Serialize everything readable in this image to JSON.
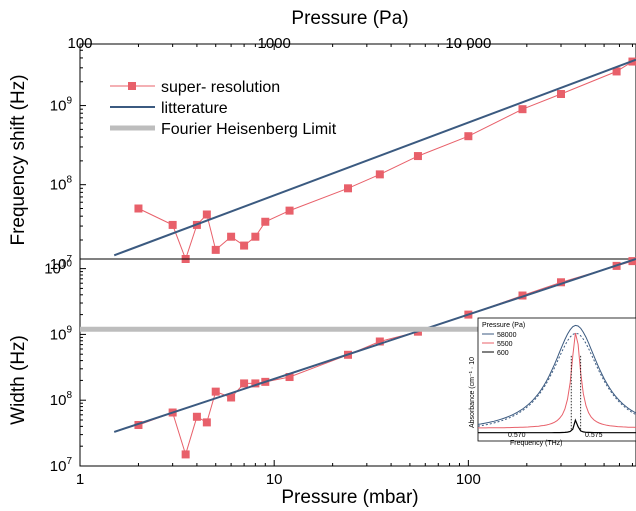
{
  "chart_data": [
    {
      "panel": "top",
      "type": "line",
      "scale": {
        "x": "log",
        "y": "log"
      },
      "xlim": [
        1,
        730
      ],
      "ylim": [
        11500000,
        6000000000
      ],
      "ylabel": "Frequency shift (Hz)",
      "top_axis": {
        "label": "Pressure (Pa)",
        "ticks": [
          {
            "value": 1.0,
            "label": "100"
          },
          {
            "value": 10,
            "label": "1000"
          },
          {
            "value": 100,
            "label": "10 000"
          }
        ]
      },
      "y_ticks": [
        {
          "value": 10000000,
          "base": "10",
          "exp": "7"
        },
        {
          "value": 100000000,
          "base": "10",
          "exp": "8"
        },
        {
          "value": 1000000000,
          "base": "10",
          "exp": "9"
        }
      ],
      "series": [
        {
          "name": "super- resolution",
          "color": "#e8606a",
          "marker": "square",
          "x": [
            2.0,
            3.0,
            3.5,
            4.0,
            4.5,
            5.0,
            6.0,
            7.0,
            8.0,
            9.0,
            12.0,
            24.0,
            35.0,
            55.0,
            100.0,
            190.0,
            300.0,
            580.0,
            700.0
          ],
          "y": [
            50000000,
            31000000,
            11500000,
            31000000,
            42000000,
            15000000,
            22000000,
            17000000,
            22000000,
            34000000,
            47000000,
            90000000,
            135000000,
            230000000,
            410000000,
            900000000,
            1400000000,
            2700000000,
            3600000000
          ]
        },
        {
          "name": "litterature",
          "color": "#3b5a80",
          "x": [
            1.5,
            730.0
          ],
          "y": [
            12800000,
            3800000000
          ]
        }
      ]
    },
    {
      "panel": "bottom",
      "type": "line",
      "scale": {
        "x": "log",
        "y": "log"
      },
      "xlim": [
        1,
        730
      ],
      "ylim": [
        10000000,
        14000000000
      ],
      "xlabel": "Pressure (mbar)",
      "ylabel": "Width (Hz)",
      "x_ticks": [
        {
          "value": 1,
          "label": "1"
        },
        {
          "value": 10,
          "label": "10"
        },
        {
          "value": 100,
          "label": "100"
        }
      ],
      "y_ticks": [
        {
          "value": 10000000,
          "base": "10",
          "exp": "7"
        },
        {
          "value": 100000000,
          "base": "10",
          "exp": "8"
        },
        {
          "value": 1000000000,
          "base": "10",
          "exp": "9"
        },
        {
          "value": 10000000000,
          "base": "10",
          "exp": "10"
        }
      ],
      "series": [
        {
          "name": "super- resolution",
          "color": "#e8606a",
          "marker": "square",
          "x": [
            2.0,
            3.0,
            3.5,
            4.0,
            4.5,
            5.0,
            6.0,
            7.0,
            8.0,
            9.0,
            12.0,
            24.0,
            35.0,
            55.0,
            100.0,
            190.0,
            300.0,
            580.0,
            700.0
          ],
          "y": [
            42000000,
            65000000,
            15000000,
            56000000,
            46000000,
            135000000,
            110000000,
            180000000,
            180000000,
            190000000,
            225000000,
            490000000,
            780000000,
            1100000000,
            2000000000,
            3900000000,
            6200000000,
            11000000000,
            13000000000
          ]
        },
        {
          "name": "litterature",
          "color": "#3b5a80",
          "x": [
            1.5,
            730.0
          ],
          "y": [
            33000000,
            14000000000
          ]
        },
        {
          "name": "Fourier Heisenberg Limit",
          "color": "#bdbdbd",
          "x": [
            1.0,
            120.0
          ],
          "y": [
            1200000000,
            1200000000
          ]
        }
      ]
    },
    {
      "panel": "inset",
      "type": "line",
      "xlabel": "Frequency (THz)",
      "ylabel": "Absorbance (cm⁻¹ · 10",
      "x_tick_labels": [
        "0.570",
        "0.575"
      ],
      "legend_title": "Pressure (Pa)",
      "series": [
        {
          "name": "58000",
          "color": "#3b5a80"
        },
        {
          "name": "5500",
          "color": "#e8606a"
        },
        {
          "name": "600",
          "color": "#000000"
        }
      ]
    }
  ],
  "legend": [
    {
      "label": "super- resolution",
      "color": "#e8606a"
    },
    {
      "label": "litterature",
      "color": "#3b5a80"
    },
    {
      "label": "Fourier Heisenberg Limit",
      "color": "#bdbdbd"
    }
  ]
}
